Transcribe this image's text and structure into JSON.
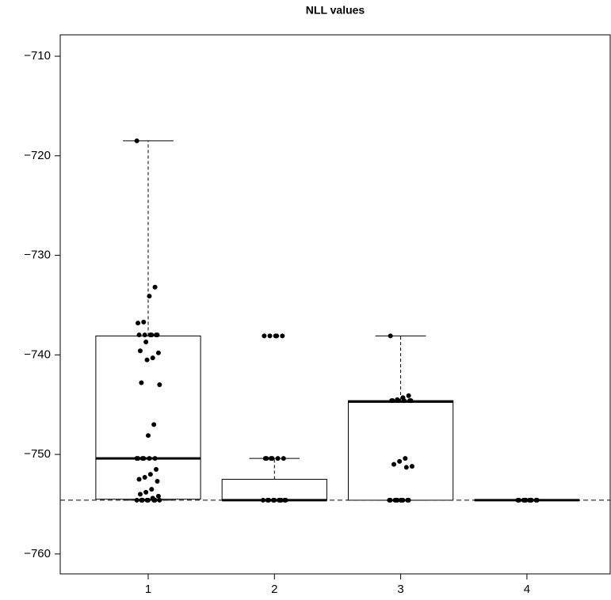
{
  "chart_data": {
    "type": "box",
    "title": "NLL values",
    "categories": [
      "1",
      "2",
      "3",
      "4"
    ],
    "boxes": [
      {
        "whislo": -754.6,
        "q1": -754.5,
        "med": -750.4,
        "q3": -738.1,
        "whishi": -718.5
      },
      {
        "whislo": -754.6,
        "q1": -754.6,
        "med": -754.6,
        "q3": -752.5,
        "whishi": -750.4
      },
      {
        "whislo": -754.6,
        "q1": -754.6,
        "med": -744.7,
        "q3": -744.6,
        "whishi": -738.1
      },
      {
        "whislo": -754.6,
        "q1": -754.6,
        "med": -754.6,
        "q3": -754.6,
        "whishi": -754.6
      }
    ],
    "points": [
      [
        -718.5,
        -733.2,
        -734.1,
        -736.7,
        -736.8,
        -738.0,
        -738.0,
        -738.0,
        -738.0,
        -738.0,
        -738.0,
        -738.7,
        -739.6,
        -739.8,
        -740.3,
        -740.5,
        -742.8,
        -743.0,
        -747.0,
        -748.1,
        -750.4,
        -750.4,
        -750.4,
        -750.4,
        -750.4,
        -750.4,
        -751.5,
        -752.0,
        -752.3,
        -752.5,
        -752.7,
        -753.5,
        -753.8,
        -754.0,
        -754.2,
        -754.4,
        -754.6,
        -754.6,
        -754.6,
        -754.6,
        -754.6,
        -754.6,
        -754.6,
        -754.6
      ],
      [
        -738.1,
        -738.1,
        -738.1,
        -738.1,
        -738.1,
        -750.4,
        -750.4,
        -750.4,
        -750.4,
        -750.4,
        -750.4,
        -754.6,
        -754.6,
        -754.6,
        -754.6,
        -754.6,
        -754.6,
        -754.6,
        -754.6,
        -754.6,
        -754.6
      ],
      [
        -738.1,
        -744.1,
        -744.3,
        -744.5,
        -744.6,
        -744.6,
        -744.6,
        -744.6,
        -744.6,
        -744.6,
        -750.4,
        -750.7,
        -751.0,
        -751.2,
        -751.3,
        -754.6,
        -754.6,
        -754.6,
        -754.6,
        -754.6,
        -754.6,
        -754.6,
        -754.6,
        -754.6,
        -754.6
      ],
      [
        -754.6,
        -754.6,
        -754.6,
        -754.6,
        -754.6,
        -754.6,
        -754.6,
        -754.6,
        -754.6,
        -754.6
      ]
    ],
    "reference_line": -754.6,
    "ylim": [
      -762,
      -707.85
    ],
    "yticks": [
      {
        "value": -710,
        "label": "−710"
      },
      {
        "value": -720,
        "label": "−720"
      },
      {
        "value": -730,
        "label": "−730"
      },
      {
        "value": -740,
        "label": "−740"
      },
      {
        "value": -750,
        "label": "−750"
      },
      {
        "value": -760,
        "label": "−760"
      }
    ]
  }
}
